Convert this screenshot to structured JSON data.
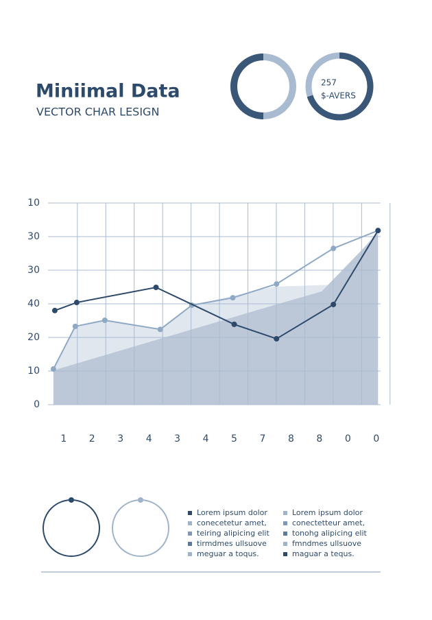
{
  "header": {
    "title": "Miniimal Data",
    "subtitle": "VECTOR CHAR LESIGN"
  },
  "badge": {
    "number": "257",
    "label": "$-AVERS"
  },
  "chart_data": {
    "type": "line",
    "xlim": [
      0.45,
      12.15
    ],
    "xticks": [
      {
        "value": 1,
        "label": "1"
      },
      {
        "value": 2,
        "label": "2"
      },
      {
        "value": 3,
        "label": "3"
      },
      {
        "value": 4,
        "label": "4"
      },
      {
        "value": 5,
        "label": "3"
      },
      {
        "value": 6,
        "label": "4"
      },
      {
        "value": 7,
        "label": "5"
      },
      {
        "value": 8,
        "label": "7"
      },
      {
        "value": 9,
        "label": "8"
      },
      {
        "value": 10,
        "label": "8"
      },
      {
        "value": 11,
        "label": "0"
      },
      {
        "value": 12,
        "label": "0"
      }
    ],
    "ylim": [
      0,
      60
    ],
    "yticks": [
      0,
      10,
      {
        "value": 20,
        "label": "20"
      },
      {
        "value": 30,
        "label": "40"
      },
      {
        "value": 40,
        "label": "30"
      },
      {
        "value": 50,
        "label": "30"
      },
      {
        "value": 60,
        "label": "10"
      }
    ],
    "grid": true,
    "series": [
      {
        "kind": "area",
        "color": "#e1e7ef",
        "x": [
          0.64,
          1.41,
          2.45,
          4.4,
          5.51,
          8.4,
          10.49,
          12.06
        ],
        "values": [
          10.6,
          23.3,
          25.1,
          22.4,
          29.6,
          35.1,
          35.7,
          51.8
        ]
      },
      {
        "kind": "area",
        "color": "#bcc8d7",
        "x": [
          0.64,
          8.4,
          10.08,
          12.06
        ],
        "values": [
          10.2,
          29.6,
          33.7,
          51.0
        ]
      },
      {
        "kind": "line",
        "color": "#8fa8c4",
        "x": [
          0.64,
          1.41,
          2.45,
          4.4,
          5.51,
          6.95,
          8.49,
          10.49,
          12.06
        ],
        "values": [
          10.6,
          23.3,
          25.1,
          22.4,
          29.6,
          31.8,
          35.9,
          46.5,
          51.8
        ]
      },
      {
        "kind": "line",
        "color": "#2e4a6b",
        "x": [
          0.69,
          1.46,
          4.25,
          7.0,
          8.49,
          10.49,
          12.06
        ],
        "values": [
          28.0,
          30.4,
          34.9,
          23.9,
          19.6,
          29.8,
          51.8
        ]
      }
    ]
  },
  "legend": {
    "left": [
      "Lorem ipsum dolor",
      "conecetetur amet,",
      "teiring alipicing elit",
      "tirmdmes ullsuove",
      "meguar a toqus."
    ],
    "right": [
      "Lorem ipsum dolor",
      "conectetteur amet,",
      "tonohg alipicing elit",
      "fmndmes ullsuove",
      "maguar a tequs."
    ]
  }
}
